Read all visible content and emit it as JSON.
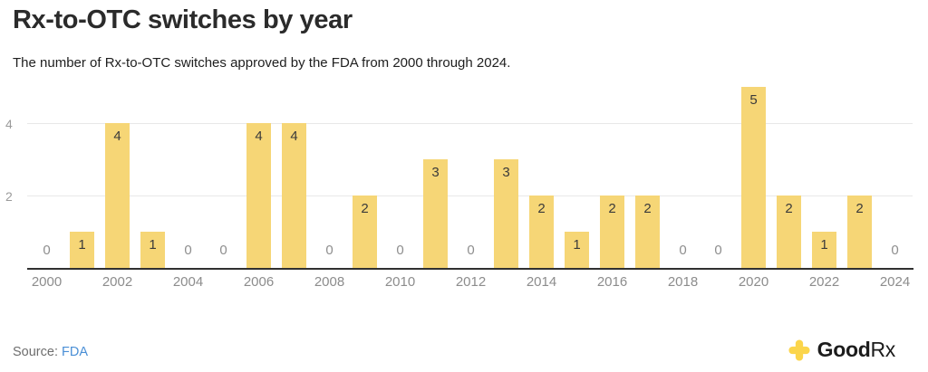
{
  "header": {
    "title": "Rx-to-OTC switches by year",
    "subtitle": "The number of Rx-to-OTC switches approved by the FDA from 2000 through 2024."
  },
  "chart_data": {
    "type": "bar",
    "title": "Rx-to-OTC switches by year",
    "categories": [
      "2000",
      "2001",
      "2002",
      "2003",
      "2004",
      "2005",
      "2006",
      "2007",
      "2008",
      "2009",
      "2010",
      "2011",
      "2012",
      "2013",
      "2014",
      "2015",
      "2016",
      "2017",
      "2018",
      "2019",
      "2020",
      "2021",
      "2022",
      "2023",
      "2024"
    ],
    "values": [
      0,
      1,
      4,
      1,
      0,
      0,
      4,
      4,
      0,
      2,
      0,
      3,
      0,
      3,
      2,
      1,
      2,
      2,
      0,
      0,
      5,
      2,
      1,
      2,
      0
    ],
    "xlabel": "",
    "ylabel": "",
    "ylim": [
      0,
      5
    ],
    "yticks": [
      2,
      4
    ],
    "x_ticks_labeled": [
      "2000",
      "2002",
      "2004",
      "2006",
      "2008",
      "2010",
      "2012",
      "2014",
      "2016",
      "2018",
      "2020",
      "2022",
      "2024"
    ],
    "grid": "horizontal",
    "legend": "none",
    "value_labels": "on-bars, zeros shown in gray above baseline"
  },
  "footer": {
    "source_label": "Source:",
    "source_link_text": "FDA",
    "brand": {
      "good": "Good",
      "rx": "Rx",
      "plus_icon": "goodrx-plus-icon"
    }
  },
  "colors": {
    "bar": "#F6D676",
    "value_label": "#3a3a3a",
    "zero_label": "#8e8e8e",
    "grid": "#e8e8e8",
    "axis_line": "#303030",
    "tick_text": "#8c8c8c",
    "link_blue": "#4A8FD6",
    "brand_yellow": "#FBD54B"
  }
}
